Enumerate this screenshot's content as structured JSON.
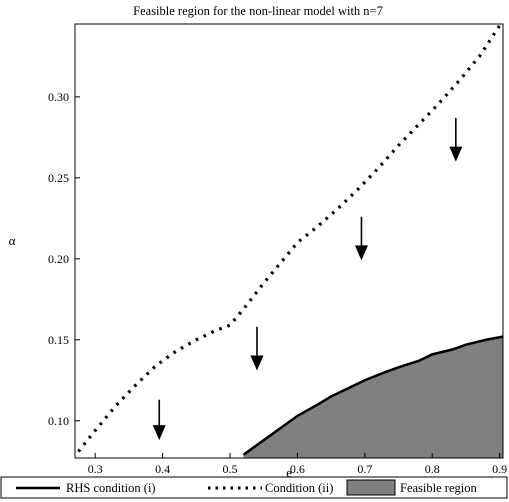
{
  "chart_data": {
    "type": "area",
    "title": "Feasible region for the non-linear model with n=7",
    "xlabel": "e",
    "ylabel": "α",
    "xlim": [
      0.27,
      0.905
    ],
    "ylim": [
      0.077,
      0.345
    ],
    "x_ticks": [
      {
        "value": 0.3,
        "label": "0.3"
      },
      {
        "value": 0.4,
        "label": "0.4"
      },
      {
        "value": 0.5,
        "label": "0.5"
      },
      {
        "value": 0.6,
        "label": "0.6"
      },
      {
        "value": 0.7,
        "label": "0.7"
      },
      {
        "value": 0.8,
        "label": "0.8"
      },
      {
        "value": 0.9,
        "label": "0.9"
      }
    ],
    "y_ticks": [
      {
        "value": 0.1,
        "label": "0.10"
      },
      {
        "value": 0.15,
        "label": "0.15"
      },
      {
        "value": 0.2,
        "label": "0.20"
      },
      {
        "value": 0.25,
        "label": "0.25"
      },
      {
        "value": 0.3,
        "label": "0.30"
      }
    ],
    "grid": false,
    "legend_position": "bottom",
    "series": [
      {
        "name": "RHS condition (i)",
        "style": "solid",
        "color": "#000000",
        "x": [
          0.52,
          0.55,
          0.58,
          0.6,
          0.63,
          0.65,
          0.68,
          0.7,
          0.73,
          0.75,
          0.78,
          0.8,
          0.83,
          0.85,
          0.88,
          0.905
        ],
        "y": [
          0.079,
          0.088,
          0.097,
          0.103,
          0.11,
          0.115,
          0.121,
          0.125,
          0.13,
          0.133,
          0.137,
          0.141,
          0.144,
          0.147,
          0.15,
          0.152
        ]
      },
      {
        "name": "Condition (ii)",
        "style": "dotted",
        "color": "#000000",
        "x": [
          0.275,
          0.3,
          0.33,
          0.36,
          0.39,
          0.42,
          0.45,
          0.48,
          0.5,
          0.52,
          0.55,
          0.58,
          0.6,
          0.63,
          0.66,
          0.69,
          0.72,
          0.75,
          0.78,
          0.81,
          0.84,
          0.87,
          0.9
        ],
        "y": [
          0.081,
          0.094,
          0.109,
          0.122,
          0.134,
          0.143,
          0.15,
          0.156,
          0.159,
          0.169,
          0.185,
          0.2,
          0.21,
          0.22,
          0.231,
          0.243,
          0.256,
          0.27,
          0.283,
          0.296,
          0.31,
          0.325,
          0.344
        ]
      }
    ],
    "feasible_region": {
      "name": "Feasible region",
      "fill": "#808080",
      "description_upper": "RHS condition (i)"
    },
    "annotations": [
      {
        "type": "arrow-down",
        "x": 0.395,
        "y_from": 0.113,
        "y_to": 0.088
      },
      {
        "type": "arrow-down",
        "x": 0.54,
        "y_from": 0.158,
        "y_to": 0.131
      },
      {
        "type": "arrow-down",
        "x": 0.695,
        "y_from": 0.226,
        "y_to": 0.199
      },
      {
        "type": "arrow-down",
        "x": 0.835,
        "y_from": 0.287,
        "y_to": 0.26
      }
    ]
  }
}
